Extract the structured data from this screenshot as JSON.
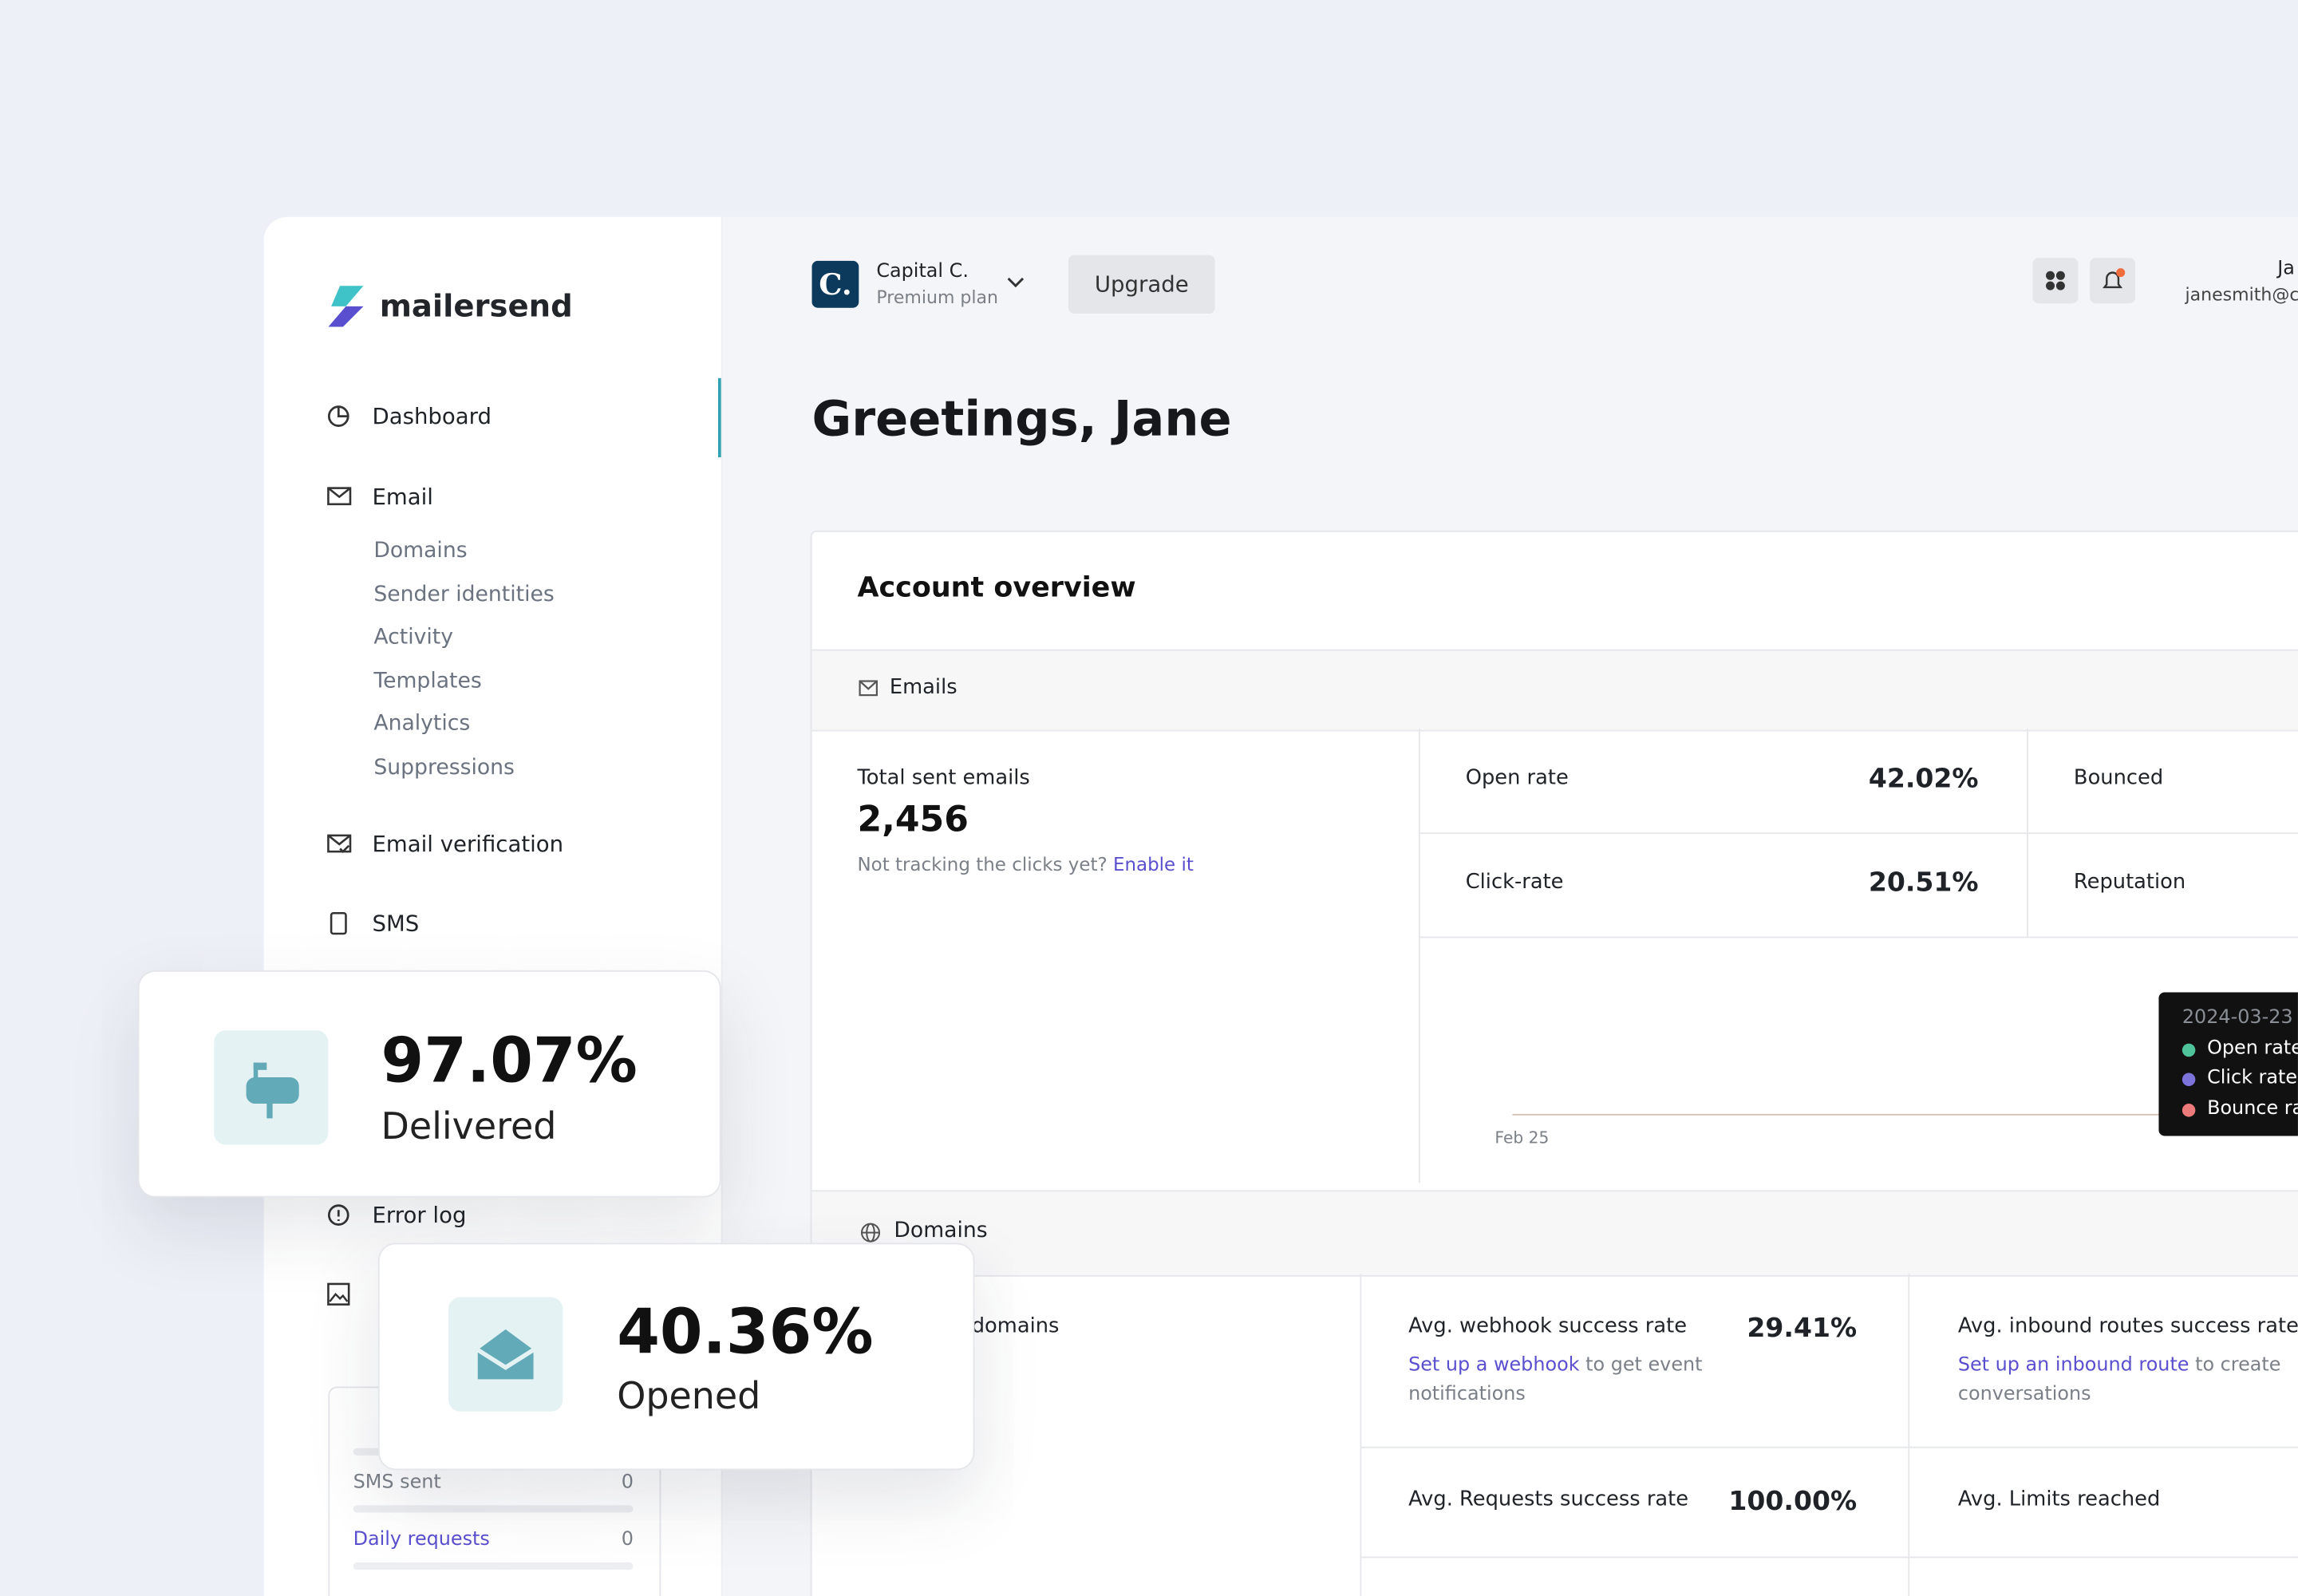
{
  "sidebar": {
    "logo": "mailersend",
    "nav": [
      "Dashboard",
      "Email",
      "Email verification",
      "SMS",
      "Error log"
    ],
    "email_subnav": [
      "Domains",
      "Sender identities",
      "Activity",
      "Templates",
      "Analytics",
      "Suppressions"
    ],
    "usage": {
      "rows": [
        {
          "label": "SMS sent",
          "value": 0
        },
        {
          "label": "Daily requests",
          "value": 0
        }
      ]
    }
  },
  "header": {
    "avatar": "C.",
    "account": "Capital C.",
    "plan": "Premium plan",
    "upgrade": "Upgrade",
    "user_name": "Ja",
    "user_email": "janesmith@ca"
  },
  "greeting": "Greetings, Jane",
  "overview": {
    "title": "Account overview",
    "emails": {
      "section": "Emails",
      "total_label": "Total sent emails",
      "total_value": "2,456",
      "tracking_note": "Not tracking the clicks yet?",
      "tracking_link": "Enable it",
      "metrics": [
        {
          "label": "Open rate",
          "value": "42.02%"
        },
        {
          "label": "Click-rate",
          "value": "20.51%"
        },
        {
          "label": "Bounced"
        },
        {
          "label": "Reputation"
        }
      ],
      "chart": {
        "x_label": "Feb 25",
        "tooltip": {
          "date": "2024-03-23",
          "items": [
            "Open rate",
            "Click rate",
            "Bounce ra"
          ]
        }
      }
    },
    "domains": {
      "section": "Domains",
      "count_label": "domains",
      "metrics": [
        {
          "label": "Avg. webhook success rate",
          "value": "29.41%",
          "link": "Set up a webhook",
          "note": "to get event notifications"
        },
        {
          "label": "Avg. inbound routes success rate",
          "link": "Set up an inbound route",
          "note": "to create conversations"
        },
        {
          "label": "Avg. Requests success rate",
          "value": "100.00%"
        },
        {
          "label": "Avg. Limits reached"
        }
      ]
    }
  },
  "cards": [
    {
      "value": "97.07%",
      "label": "Delivered"
    },
    {
      "value": "40.36%",
      "label": "Opened"
    }
  ]
}
